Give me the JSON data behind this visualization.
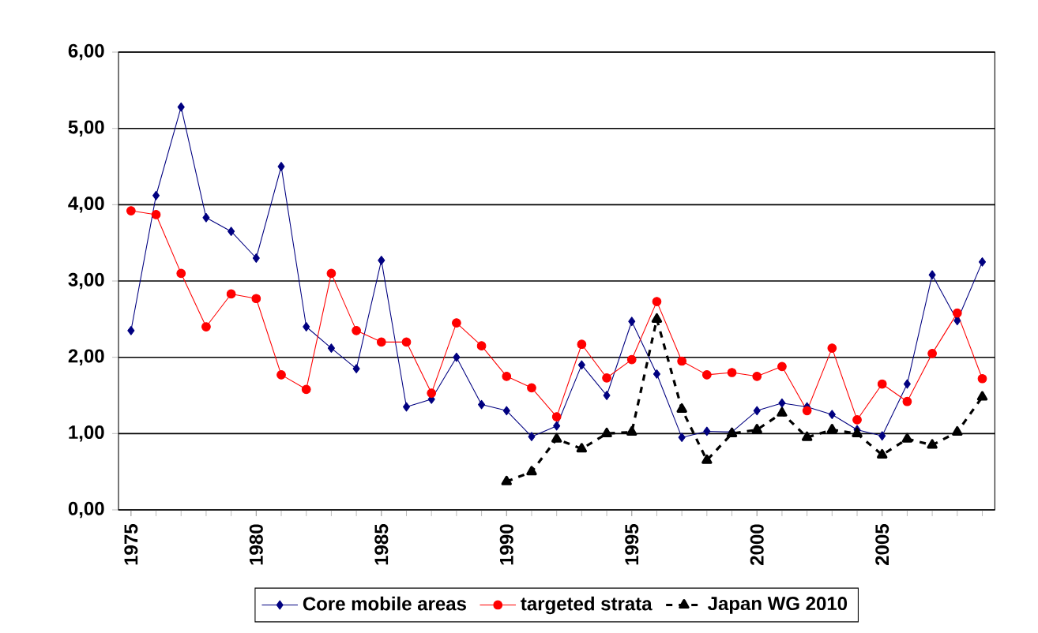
{
  "chart_data": {
    "type": "line",
    "x": [
      1975,
      1976,
      1977,
      1978,
      1979,
      1980,
      1981,
      1982,
      1983,
      1984,
      1985,
      1986,
      1987,
      1988,
      1989,
      1990,
      1991,
      1992,
      1993,
      1994,
      1995,
      1996,
      1997,
      1998,
      1999,
      2000,
      2001,
      2002,
      2003,
      2004,
      2005,
      2006,
      2007,
      2008,
      2009
    ],
    "xlim": [
      1974.5,
      2009.5
    ],
    "xticks": [
      1975,
      1980,
      1985,
      1990,
      1995,
      2000,
      2005
    ],
    "ylim": [
      0,
      6
    ],
    "yticks": [
      {
        "value": 0,
        "label": "0,00"
      },
      {
        "value": 1,
        "label": "1,00"
      },
      {
        "value": 2,
        "label": "2,00"
      },
      {
        "value": 3,
        "label": "3,00"
      },
      {
        "value": 4,
        "label": "4,00"
      },
      {
        "value": 5,
        "label": "5,00"
      },
      {
        "value": 6,
        "label": "6,00"
      }
    ],
    "grid": "y",
    "legend": "bottom",
    "series": [
      {
        "name": "Core mobile areas",
        "color": "#000080",
        "marker": "diamond",
        "line_style": "solid",
        "values": [
          2.35,
          4.12,
          5.28,
          3.83,
          3.65,
          3.3,
          4.5,
          2.4,
          2.12,
          1.85,
          3.27,
          1.35,
          1.45,
          2.0,
          1.38,
          1.3,
          0.96,
          1.1,
          1.9,
          1.5,
          2.47,
          1.78,
          0.95,
          1.03,
          1.02,
          1.3,
          1.4,
          1.35,
          1.25,
          1.05,
          0.97,
          1.65,
          3.08,
          2.48,
          3.25
        ]
      },
      {
        "name": "targeted strata",
        "color": "#ff0000",
        "marker": "circle",
        "line_style": "solid",
        "values": [
          3.92,
          3.87,
          3.1,
          2.4,
          2.83,
          2.77,
          1.77,
          1.58,
          3.1,
          2.35,
          2.2,
          2.2,
          1.53,
          2.45,
          2.15,
          1.75,
          1.6,
          1.22,
          2.17,
          1.73,
          1.97,
          2.73,
          1.95,
          1.77,
          1.8,
          1.75,
          1.88,
          1.3,
          2.12,
          1.18,
          1.65,
          1.42,
          2.05,
          2.58,
          1.72
        ]
      },
      {
        "name": "Japan WG 2010",
        "color": "#000000",
        "marker": "triangle",
        "line_style": "dashed",
        "values": [
          null,
          null,
          null,
          null,
          null,
          null,
          null,
          null,
          null,
          null,
          null,
          null,
          null,
          null,
          null,
          0.37,
          0.5,
          0.93,
          0.8,
          1.0,
          1.02,
          2.5,
          1.32,
          0.65,
          1.0,
          1.05,
          1.27,
          0.95,
          1.05,
          1.0,
          0.72,
          0.93,
          0.85,
          1.02,
          1.48
        ]
      }
    ]
  }
}
